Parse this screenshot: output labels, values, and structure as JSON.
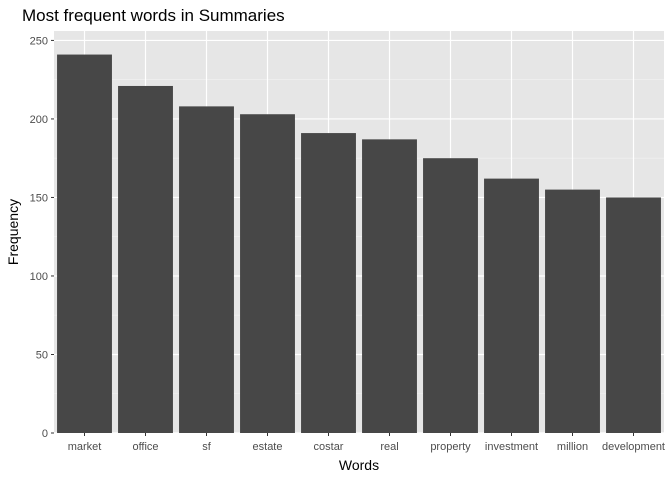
{
  "chart_data": {
    "type": "bar",
    "title": "Most frequent words in Summaries",
    "xlabel": "Words",
    "ylabel": "Frequency",
    "categories": [
      "market",
      "office",
      "sf",
      "estate",
      "costar",
      "real",
      "property",
      "investment",
      "million",
      "development"
    ],
    "values": [
      241,
      221,
      208,
      203,
      191,
      187,
      175,
      162,
      155,
      150
    ],
    "ylim": [
      0,
      256
    ],
    "yticks": [
      0,
      50,
      100,
      150,
      200,
      250
    ],
    "grid": true,
    "legend": "none",
    "colors": {
      "bar": "#474747",
      "panel": "#e6e6e6",
      "grid_major": "#ffffff",
      "grid_minor": "#f2f2f2",
      "tick_text": "#4d4d4d"
    }
  }
}
